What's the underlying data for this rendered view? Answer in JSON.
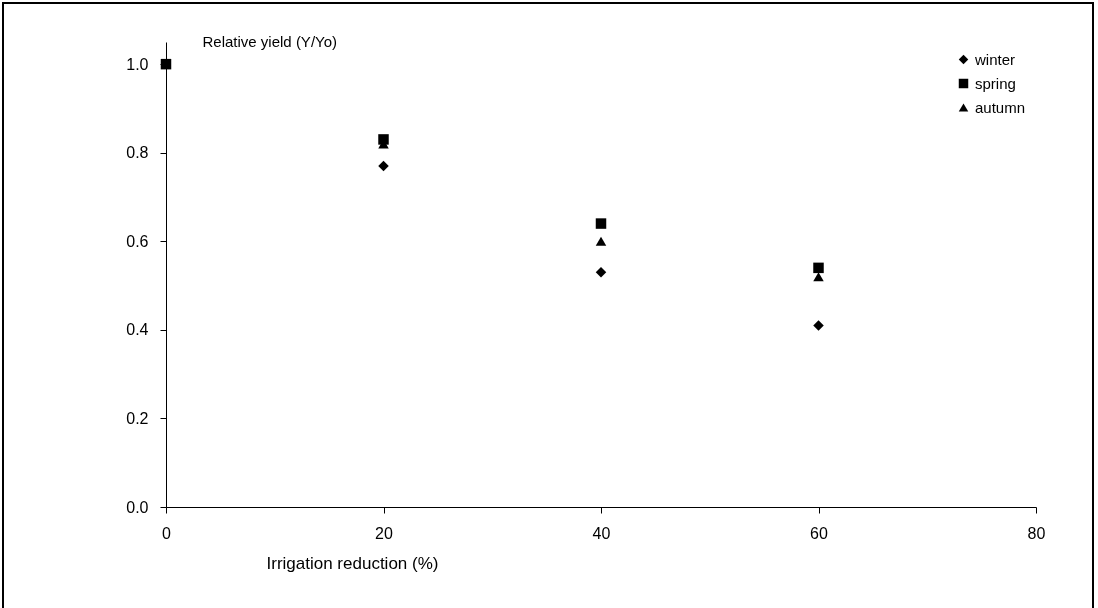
{
  "chart_data": {
    "type": "scatter",
    "xlabel": "Irrigation reduction  (%)",
    "ylabel": "Relative yield (Y/Yo)",
    "x": [
      0,
      20,
      40,
      60
    ],
    "series": [
      {
        "name": "winter",
        "color": "#000000",
        "marker": "diamond",
        "values": [
          null,
          0.77,
          0.53,
          0.41
        ]
      },
      {
        "name": "spring",
        "color": "#000000",
        "marker": "square",
        "values": [
          1.0,
          0.83,
          0.64,
          0.54
        ]
      },
      {
        "name": "autumn",
        "color": "#000000",
        "marker": "triangle",
        "values": [
          null,
          0.82,
          0.6,
          0.52
        ]
      }
    ],
    "xlim": [
      0,
      80
    ],
    "xticks": [
      0,
      20,
      40,
      60,
      80
    ],
    "ylim": [
      0,
      1.05
    ],
    "yticks": [
      {
        "value": 0,
        "label": "0.0"
      },
      0.2,
      0.4,
      0.6,
      0.8,
      {
        "value": 1,
        "label": "1.0"
      }
    ],
    "grid": false,
    "legend": "top right"
  }
}
